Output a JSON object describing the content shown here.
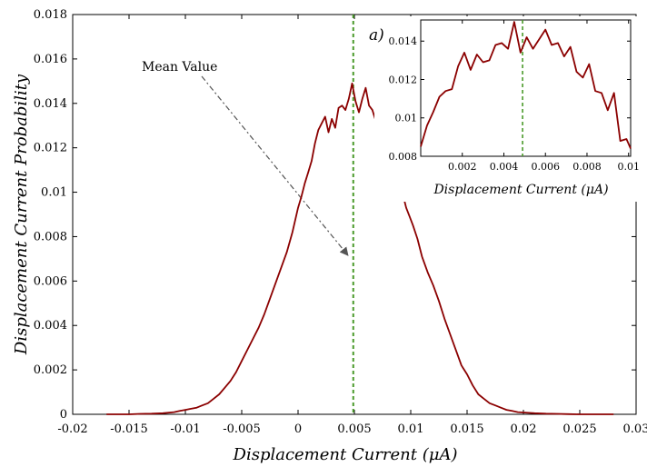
{
  "chart_data": {
    "type": "line",
    "xlabel": "Displacement Current (μA)",
    "ylabel": "Displacement Current Probability",
    "xlim": [
      -0.02,
      0.03
    ],
    "ylim": [
      0,
      0.018
    ],
    "x_ticks": [
      -0.02,
      -0.015,
      -0.01,
      -0.005,
      0,
      0.005,
      0.01,
      0.015,
      0.02,
      0.025,
      0.03
    ],
    "x_tick_labels": [
      "-0.02",
      "-0.015",
      "-0.01",
      "-0.005",
      "0",
      "0.005",
      "0.01",
      "0.015",
      "0.02",
      "0.025",
      "0.03"
    ],
    "y_ticks": [
      0,
      0.002,
      0.004,
      0.006,
      0.008,
      0.01,
      0.012,
      0.014,
      0.016,
      0.018
    ],
    "y_tick_labels": [
      "0",
      "0.002",
      "0.004",
      "0.006",
      "0.008",
      "0.01",
      "0.012",
      "0.014",
      "0.016",
      "0.018"
    ],
    "grid": false,
    "line_color": "#8b0000",
    "mean_line_color": "#4a9a2a",
    "mean_value_x": 0.0049,
    "annotation": {
      "text": "Mean Value",
      "target": [
        0.0046,
        0.0072
      ]
    },
    "panel_label": "a)",
    "series": [
      {
        "x": [
          -0.017,
          -0.016,
          -0.015,
          -0.014,
          -0.013,
          -0.012,
          -0.011,
          -0.0105,
          -0.01,
          -0.0095,
          -0.009,
          -0.0085,
          -0.008,
          -0.0075,
          -0.007,
          -0.0065,
          -0.006,
          -0.0055,
          -0.005,
          -0.0045,
          -0.004,
          -0.0035,
          -0.003,
          -0.0025,
          -0.002,
          -0.0015,
          -0.001,
          -0.0005,
          0,
          0.0003,
          0.0006,
          0.0009,
          0.0012,
          0.0015,
          0.0018,
          0.0021,
          0.0024,
          0.0027,
          0.003,
          0.0033,
          0.0036,
          0.0039,
          0.0042,
          0.0045,
          0.0048,
          0.0051,
          0.0054,
          0.0057,
          0.006,
          0.0063,
          0.0066,
          0.0069,
          0.0072,
          0.0075,
          0.0078,
          0.0081,
          0.0084,
          0.0087,
          0.009,
          0.0093,
          0.0096,
          0.0099,
          0.0102,
          0.0106,
          0.011,
          0.0115,
          0.012,
          0.0125,
          0.013,
          0.0135,
          0.014,
          0.0145,
          0.015,
          0.0155,
          0.016,
          0.0165,
          0.017,
          0.0175,
          0.018,
          0.0185,
          0.019,
          0.0195,
          0.02,
          0.021,
          0.022,
          0.023,
          0.024,
          0.025,
          0.026,
          0.027,
          0.028
        ],
        "y": [
          0,
          0,
          0,
          2e-05,
          3e-05,
          5e-05,
          0.0001,
          0.00015,
          0.0002,
          0.00025,
          0.0003,
          0.0004,
          0.0005,
          0.0007,
          0.0009,
          0.0012,
          0.0015,
          0.0019,
          0.0024,
          0.0029,
          0.0034,
          0.0039,
          0.0045,
          0.0052,
          0.0059,
          0.0066,
          0.0073,
          0.0082,
          0.0093,
          0.0098,
          0.0104,
          0.0109,
          0.0114,
          0.0122,
          0.0128,
          0.0131,
          0.0134,
          0.0127,
          0.0133,
          0.0129,
          0.0138,
          0.0139,
          0.0137,
          0.0142,
          0.0149,
          0.0141,
          0.0136,
          0.0142,
          0.0147,
          0.0139,
          0.0137,
          0.0132,
          0.0135,
          0.0125,
          0.0121,
          0.0118,
          0.0112,
          0.0116,
          0.0103,
          0.0099,
          0.0093,
          0.0089,
          0.0085,
          0.0079,
          0.0071,
          0.0064,
          0.0058,
          0.0051,
          0.0043,
          0.0036,
          0.0029,
          0.0022,
          0.0018,
          0.0013,
          0.0009,
          0.0007,
          0.0005,
          0.0004,
          0.0003,
          0.0002,
          0.00015,
          0.0001,
          8e-05,
          5e-05,
          3e-05,
          2e-05,
          1e-05,
          0,
          0,
          0,
          0
        ]
      }
    ],
    "inset": {
      "xlabel": "Displacement Current (μA)",
      "xlim": [
        0,
        0.0101
      ],
      "ylim": [
        0.008,
        0.0151
      ],
      "x_ticks": [
        0.002,
        0.004,
        0.006,
        0.008,
        0.01
      ],
      "x_tick_labels": [
        "0.002",
        "0.004",
        "0.006",
        "0.008",
        "0.01"
      ],
      "y_ticks": [
        0.008,
        0.01,
        0.012,
        0.014
      ],
      "y_tick_labels": [
        "0.008",
        "0.01",
        "0.012",
        "0.014"
      ],
      "x": [
        0,
        0.0003,
        0.0006,
        0.0009,
        0.0012,
        0.0015,
        0.0018,
        0.0021,
        0.0024,
        0.0027,
        0.003,
        0.0033,
        0.0036,
        0.0039,
        0.0042,
        0.0045,
        0.0048,
        0.0051,
        0.0054,
        0.0057,
        0.006,
        0.0063,
        0.0066,
        0.0069,
        0.0072,
        0.0075,
        0.0078,
        0.0081,
        0.0084,
        0.0087,
        0.009,
        0.0093,
        0.0096,
        0.0099,
        0.0101
      ],
      "y": [
        0.0085,
        0.0096,
        0.0103,
        0.0111,
        0.0114,
        0.0115,
        0.0127,
        0.0134,
        0.0125,
        0.0133,
        0.0129,
        0.013,
        0.0138,
        0.0139,
        0.0136,
        0.015,
        0.0134,
        0.0142,
        0.0136,
        0.0141,
        0.0146,
        0.0138,
        0.0139,
        0.0132,
        0.0137,
        0.0124,
        0.0121,
        0.0128,
        0.0114,
        0.0113,
        0.0104,
        0.0113,
        0.0088,
        0.0089,
        0.0084
      ]
    }
  }
}
